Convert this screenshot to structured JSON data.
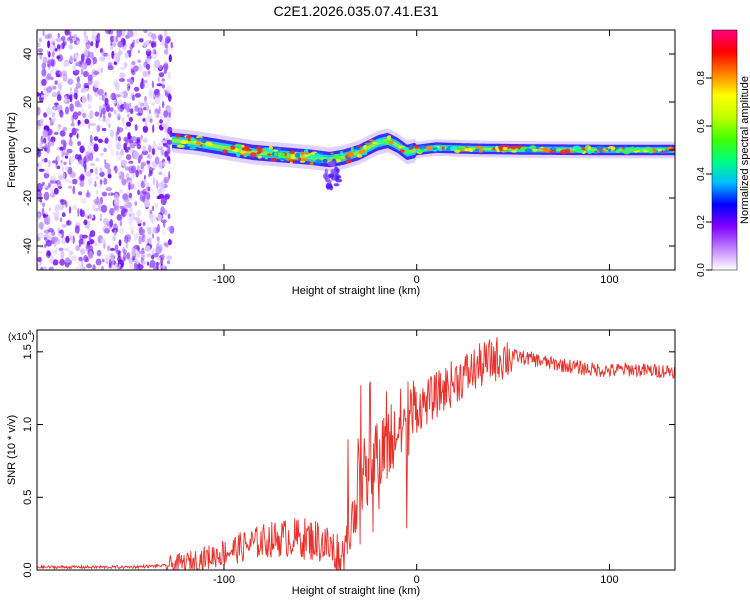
{
  "chart_data": [
    {
      "type": "heatmap",
      "title": "C2E1.2026.035.07.41.E31",
      "xlabel": "Height of straight line (km)",
      "ylabel": "Frequency (Hz)",
      "xlim": [
        -197,
        134
      ],
      "ylim": [
        -50,
        50
      ],
      "x_ticks": [
        -100,
        0,
        100
      ],
      "x_tick_labels": [
        "-100",
        "0",
        "100"
      ],
      "y_ticks": [
        -40,
        -20,
        0,
        20,
        40
      ],
      "y_tick_labels": [
        "-40",
        "-20",
        "0",
        "20",
        "40"
      ],
      "noise_region_xmax": -127,
      "ridge_x": [
        -127,
        -115,
        -100,
        -85,
        -70,
        -55,
        -45,
        -38,
        -30,
        -20,
        -15,
        -10,
        -5,
        0,
        10,
        30,
        60,
        100,
        134
      ],
      "ridge_y": [
        4,
        3,
        1,
        -1,
        -2,
        -3,
        -4,
        -3,
        -1,
        3,
        4,
        2,
        -1,
        0,
        1,
        0.5,
        0.2,
        0,
        0
      ],
      "colorbar": {
        "label": "Normalized spectral amplitude",
        "range": [
          0,
          1
        ],
        "ticks": [
          0.0,
          0.2,
          0.4,
          0.6,
          0.8
        ],
        "tick_labels": [
          "0.0",
          "0.2",
          "0.4",
          "0.6",
          "0.8"
        ],
        "colors": [
          "#ffffff",
          "#c080ff",
          "#8000ff",
          "#0000ff",
          "#00c0ff",
          "#00ff80",
          "#40ff00",
          "#c0ff00",
          "#ffff00",
          "#ff8000",
          "#ff0000",
          "#ff0080"
        ]
      }
    },
    {
      "type": "line",
      "title": "",
      "xlabel": "Height of straight line (km)",
      "ylabel": "SNR (10 * v/v)",
      "y_scale_label": "(x10",
      "y_scale_exp": "4",
      "y_scale_close": ")",
      "xlim": [
        -197,
        134
      ],
      "ylim": [
        0,
        1.65
      ],
      "x_ticks": [
        -100,
        0,
        100
      ],
      "x_tick_labels": [
        "-100",
        "0",
        "100"
      ],
      "y_ticks": [
        0.0,
        0.5,
        1.0,
        1.5
      ],
      "y_tick_labels": [
        "0.0",
        "0.5",
        "1.0",
        "1.5"
      ],
      "series": [
        {
          "name": "SNR",
          "color": "#e8302a",
          "x": [
            -197,
            -150,
            -130,
            -120,
            -110,
            -100,
            -90,
            -80,
            -70,
            -60,
            -50,
            -45,
            -40,
            -35,
            -33,
            -30,
            -25,
            -20,
            -15,
            -10,
            -5,
            0,
            5,
            10,
            20,
            30,
            40,
            50,
            60,
            70,
            80,
            90,
            100,
            110,
            120,
            134
          ],
          "y": [
            0.02,
            0.02,
            0.03,
            0.05,
            0.08,
            0.12,
            0.16,
            0.2,
            0.22,
            0.22,
            0.2,
            0.15,
            0.1,
            0.15,
            0.45,
            0.6,
            0.7,
            0.8,
            0.85,
            0.95,
            1.05,
            1.1,
            1.15,
            1.2,
            1.3,
            1.38,
            1.45,
            1.47,
            1.45,
            1.42,
            1.4,
            1.38,
            1.37,
            1.38,
            1.37,
            1.37
          ]
        }
      ]
    }
  ]
}
